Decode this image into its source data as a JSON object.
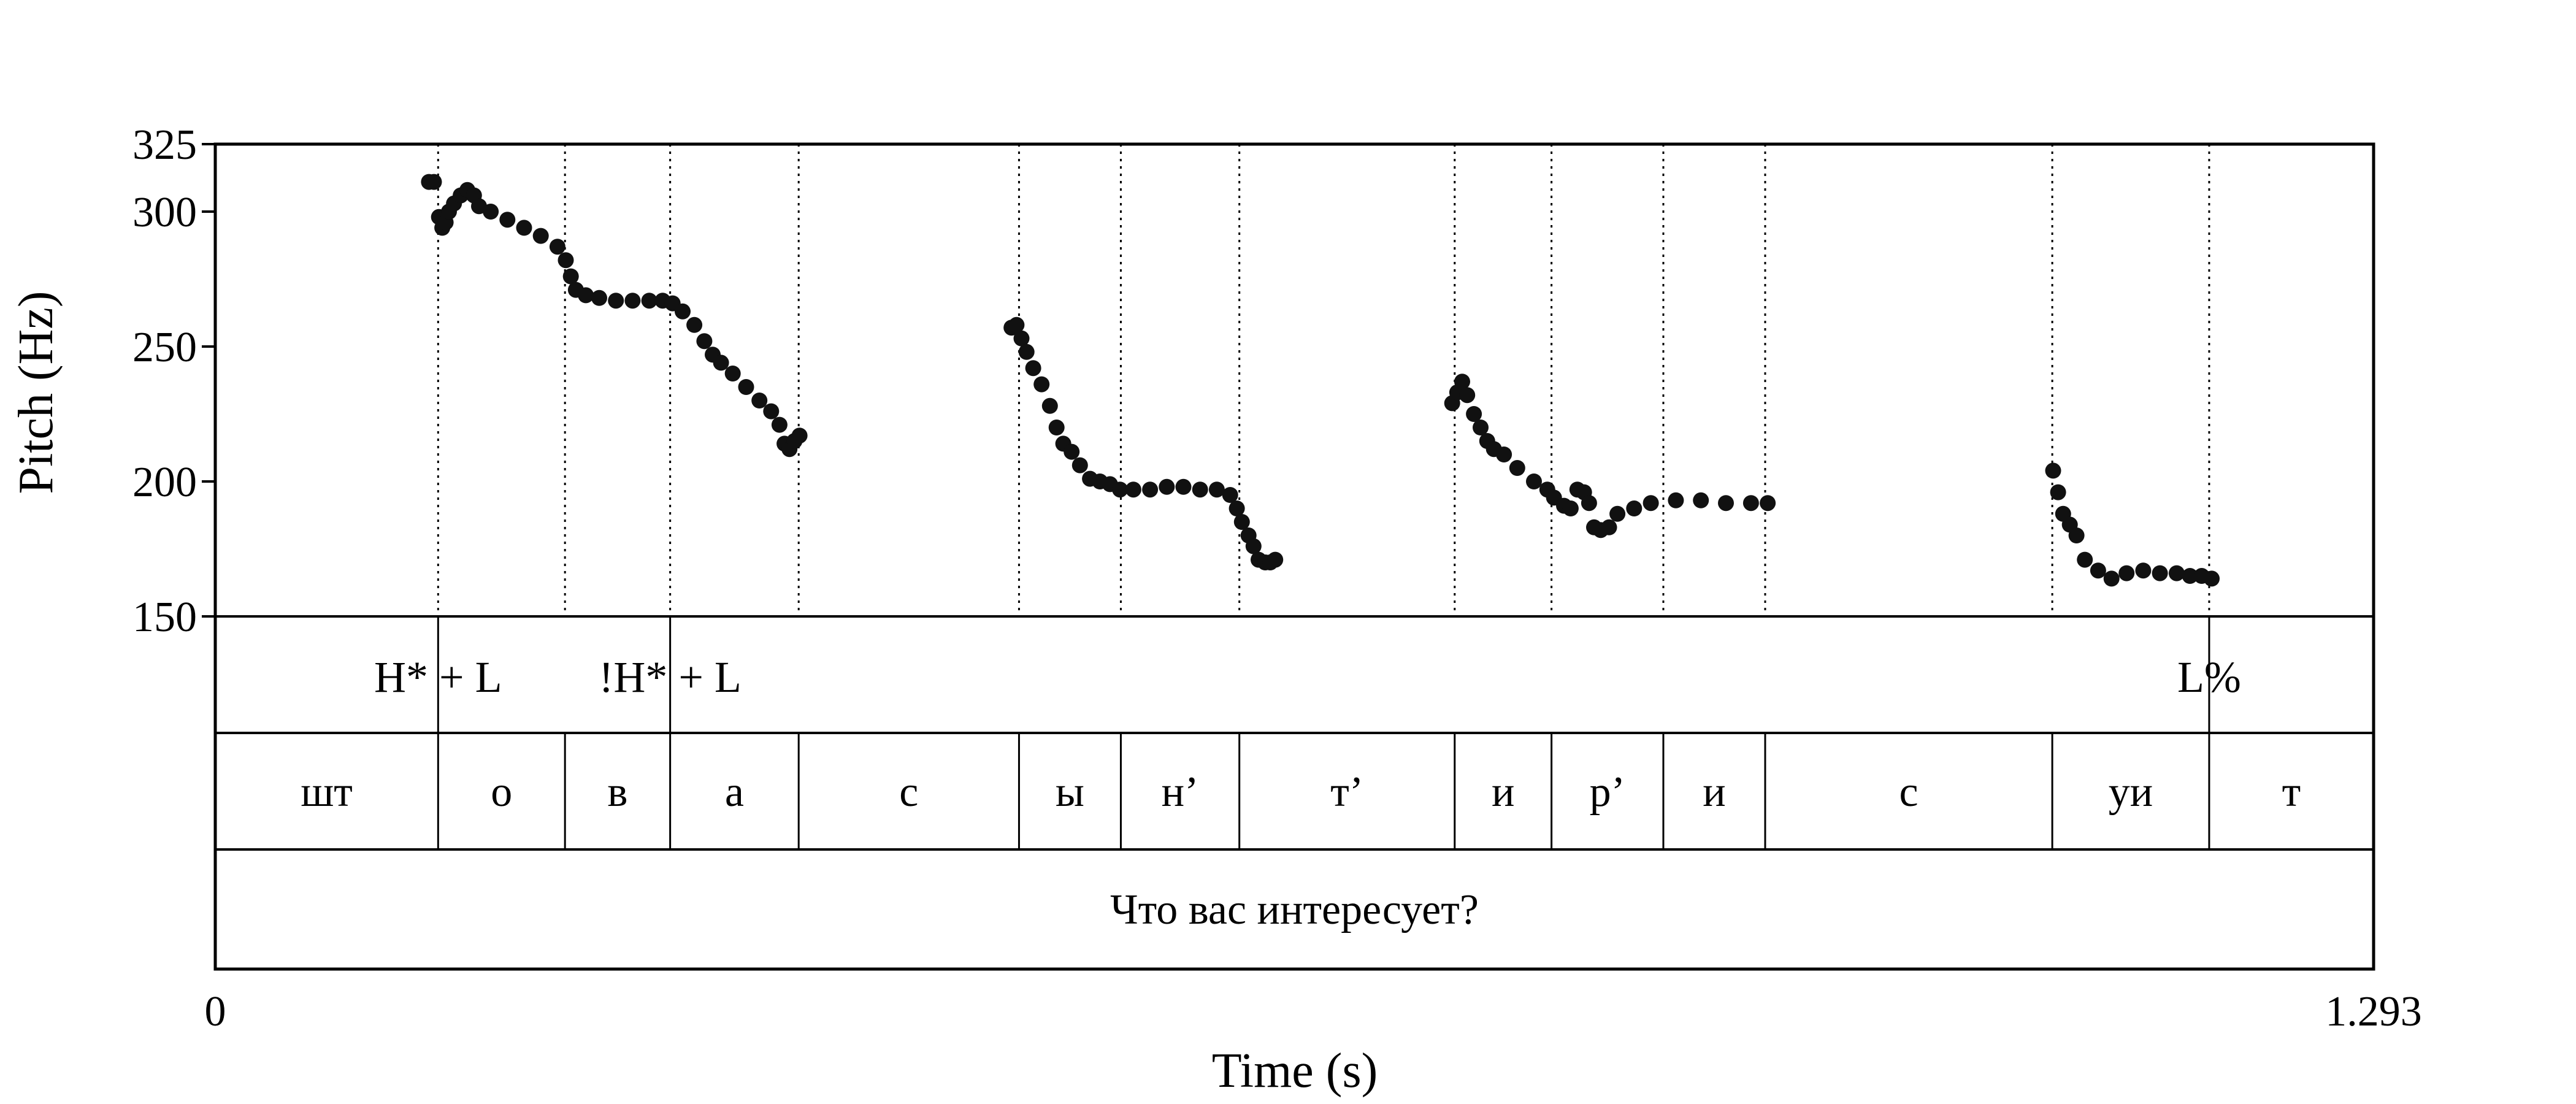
{
  "chart_data": {
    "type": "scatter",
    "title": "",
    "xlabel": "Time (s)",
    "ylabel": "Pitch (Hz)",
    "xlim": [
      0,
      1.293
    ],
    "ylim": [
      150,
      325
    ],
    "x_tick_labels": [
      "0",
      "1.293"
    ],
    "y_ticks": [
      150,
      200,
      250,
      300,
      325
    ],
    "y_tick_labels": [
      "150",
      "200",
      "250",
      "300",
      "325"
    ],
    "grid": false,
    "segment_boundaries": [
      0.1335,
      0.2095,
      0.2725,
      0.3495,
      0.4815,
      0.5425,
      0.6135,
      0.7425,
      0.8005,
      0.8675,
      0.9285,
      1.1005,
      1.1945
    ],
    "tones": [
      {
        "time": 0.1335,
        "label": "H* + L"
      },
      {
        "time": 0.2725,
        "label": "!H* + L"
      },
      {
        "time": 1.1945,
        "label": "L%"
      }
    ],
    "segments": [
      {
        "start": 0.0,
        "end": 0.1335,
        "label": "шт"
      },
      {
        "start": 0.1335,
        "end": 0.2095,
        "label": "о"
      },
      {
        "start": 0.2095,
        "end": 0.2725,
        "label": "в"
      },
      {
        "start": 0.2725,
        "end": 0.3495,
        "label": "а"
      },
      {
        "start": 0.3495,
        "end": 0.4815,
        "label": "с"
      },
      {
        "start": 0.4815,
        "end": 0.5425,
        "label": "ы"
      },
      {
        "start": 0.5425,
        "end": 0.6135,
        "label": "н’"
      },
      {
        "start": 0.6135,
        "end": 0.7425,
        "label": "т’"
      },
      {
        "start": 0.7425,
        "end": 0.8005,
        "label": "и"
      },
      {
        "start": 0.8005,
        "end": 0.8675,
        "label": "р’"
      },
      {
        "start": 0.8675,
        "end": 0.9285,
        "label": "и"
      },
      {
        "start": 0.9285,
        "end": 1.1005,
        "label": "с"
      },
      {
        "start": 1.1005,
        "end": 1.1945,
        "label": "уи"
      },
      {
        "start": 1.1945,
        "end": 1.293,
        "label": "т"
      }
    ],
    "sentence": "Что вас интересует?",
    "pitch_contours": [
      [
        [
          0.128,
          311
        ],
        [
          0.131,
          311
        ],
        [
          0.134,
          298
        ],
        [
          0.136,
          294
        ],
        [
          0.138,
          296
        ],
        [
          0.14,
          300
        ],
        [
          0.143,
          303
        ],
        [
          0.147,
          306
        ],
        [
          0.151,
          308
        ],
        [
          0.155,
          306
        ],
        [
          0.158,
          302
        ],
        [
          0.165,
          300
        ],
        [
          0.175,
          297
        ],
        [
          0.185,
          294
        ],
        [
          0.195,
          291
        ],
        [
          0.205,
          287
        ],
        [
          0.21,
          282
        ],
        [
          0.213,
          276
        ],
        [
          0.216,
          271
        ],
        [
          0.222,
          269
        ],
        [
          0.23,
          268
        ],
        [
          0.24,
          267
        ],
        [
          0.25,
          267
        ],
        [
          0.26,
          267
        ],
        [
          0.268,
          267
        ],
        [
          0.274,
          266
        ],
        [
          0.28,
          263
        ],
        [
          0.287,
          258
        ],
        [
          0.293,
          252
        ],
        [
          0.298,
          247
        ],
        [
          0.303,
          244
        ],
        [
          0.31,
          240
        ],
        [
          0.318,
          235
        ],
        [
          0.326,
          230
        ],
        [
          0.333,
          226
        ],
        [
          0.338,
          221
        ],
        [
          0.341,
          214
        ],
        [
          0.344,
          212
        ],
        [
          0.347,
          215
        ],
        [
          0.35,
          217
        ]
      ],
      [
        [
          0.477,
          257
        ],
        [
          0.48,
          258
        ],
        [
          0.483,
          253
        ],
        [
          0.486,
          248
        ],
        [
          0.49,
          242
        ],
        [
          0.495,
          236
        ],
        [
          0.5,
          228
        ],
        [
          0.504,
          220
        ],
        [
          0.508,
          214
        ],
        [
          0.513,
          211
        ],
        [
          0.518,
          206
        ],
        [
          0.524,
          201
        ],
        [
          0.53,
          200
        ],
        [
          0.536,
          199
        ],
        [
          0.542,
          197
        ],
        [
          0.55,
          197
        ],
        [
          0.56,
          197
        ],
        [
          0.57,
          198
        ],
        [
          0.58,
          198
        ],
        [
          0.59,
          197
        ],
        [
          0.6,
          197
        ],
        [
          0.608,
          195
        ],
        [
          0.612,
          190
        ],
        [
          0.615,
          185
        ],
        [
          0.619,
          180
        ],
        [
          0.622,
          176
        ],
        [
          0.625,
          171
        ],
        [
          0.629,
          170
        ],
        [
          0.632,
          170
        ],
        [
          0.635,
          171
        ]
      ],
      [
        [
          0.741,
          229
        ],
        [
          0.744,
          233
        ],
        [
          0.747,
          237
        ],
        [
          0.75,
          232
        ],
        [
          0.754,
          225
        ],
        [
          0.758,
          220
        ],
        [
          0.762,
          215
        ],
        [
          0.766,
          212
        ],
        [
          0.772,
          210
        ],
        [
          0.78,
          205
        ],
        [
          0.79,
          200
        ],
        [
          0.798,
          197
        ],
        [
          0.802,
          194
        ],
        [
          0.808,
          191
        ],
        [
          0.812,
          190
        ],
        [
          0.816,
          197
        ],
        [
          0.82,
          196
        ],
        [
          0.823,
          192
        ],
        [
          0.826,
          183
        ],
        [
          0.83,
          182
        ],
        [
          0.835,
          183
        ],
        [
          0.84,
          188
        ],
        [
          0.85,
          190
        ],
        [
          0.86,
          192
        ],
        [
          0.875,
          193
        ],
        [
          0.89,
          193
        ],
        [
          0.905,
          192
        ],
        [
          0.92,
          192
        ],
        [
          0.93,
          192
        ]
      ],
      [
        [
          1.101,
          204
        ],
        [
          1.104,
          196
        ],
        [
          1.107,
          188
        ],
        [
          1.111,
          184
        ],
        [
          1.115,
          180
        ],
        [
          1.12,
          171
        ],
        [
          1.128,
          167
        ],
        [
          1.136,
          164
        ],
        [
          1.145,
          166
        ],
        [
          1.155,
          167
        ],
        [
          1.165,
          166
        ],
        [
          1.175,
          166
        ],
        [
          1.183,
          165
        ],
        [
          1.19,
          165
        ],
        [
          1.196,
          164
        ]
      ]
    ]
  }
}
